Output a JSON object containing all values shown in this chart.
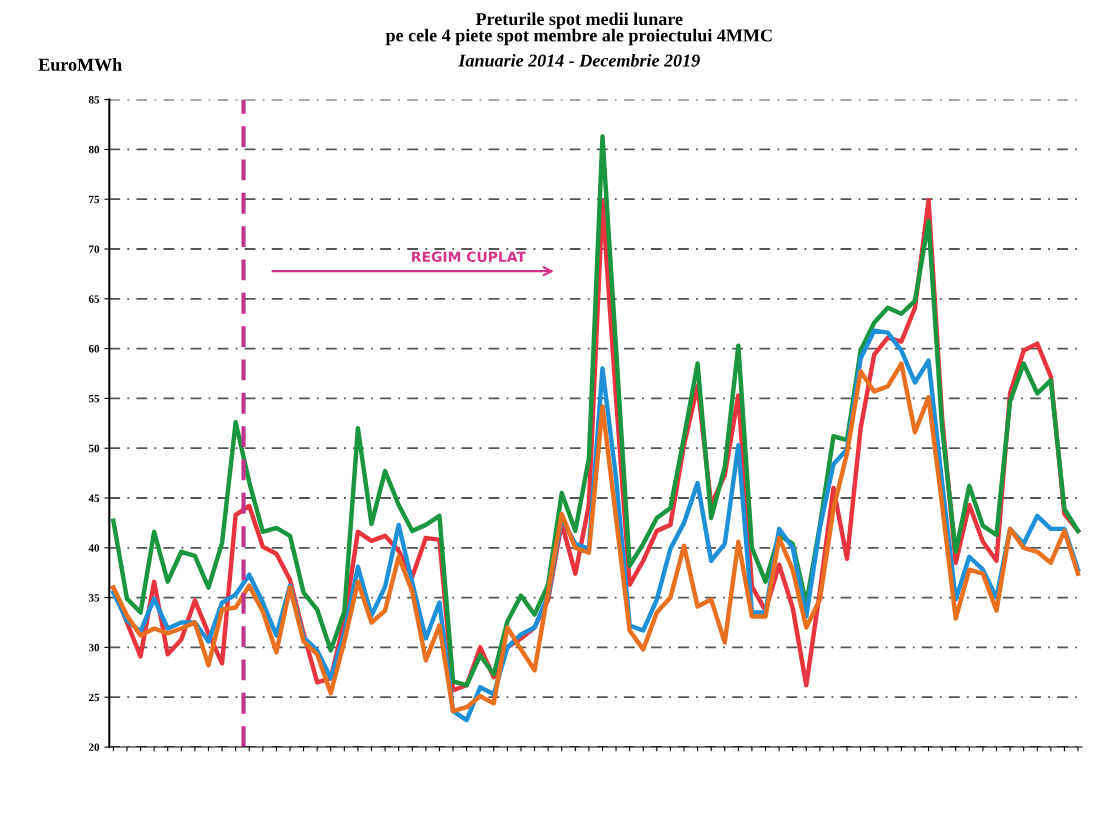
{
  "chart_data": {
    "type": "line",
    "title": "Preturile spot medii lunare\npe cele 4 piete spot membre ale proiectului 4MMC",
    "subtitle": "Ianuarie 2014 - Decembrie 2019",
    "ylabel": "EuroMWh",
    "annotations": [
      "REGIM CUPLAT"
    ],
    "categories": [
      null,
      null,
      null,
      null,
      null,
      null,
      null,
      null,
      null,
      null,
      null,
      null,
      null,
      null,
      null,
      null,
      null,
      null,
      null,
      null,
      null,
      null,
      null,
      null,
      null,
      null,
      null,
      null,
      null,
      null,
      null,
      null,
      null,
      null,
      null,
      null,
      null,
      null,
      null,
      null,
      null,
      null,
      null,
      null,
      null,
      null,
      null,
      null,
      null,
      null,
      null,
      null,
      null,
      null,
      null,
      null,
      null,
      null,
      null,
      null,
      null,
      null,
      null,
      null,
      null,
      null,
      null,
      null,
      null,
      null,
      null,
      null
    ],
    "series": [
      {
        "color": "#e8343f",
        "values": [
          36.0,
          32.5,
          29.1,
          36.6,
          29.3,
          30.8,
          34.7,
          31.4,
          28.4,
          43.3,
          44.2,
          40.1,
          39.4,
          36.8,
          31.4,
          26.5,
          26.9,
          32.7,
          41.6,
          40.7,
          41.2,
          39.7,
          37.1,
          41.0,
          40.8,
          25.7,
          26.2,
          30.0,
          27.0,
          30.0,
          30.9,
          32.0,
          34.8,
          42.5,
          37.4,
          44.3,
          74.8,
          55,
          36.3,
          38.7,
          41.7,
          42.3,
          50.3,
          56.3,
          44.3,
          47.3,
          55.3,
          36.1,
          33.7,
          38.3,
          34.0,
          26.2,
          35.6,
          46.0,
          38.9,
          52.0,
          59.4,
          61.1,
          60.7,
          64.1,
          74.9,
          53,
          38.5,
          44.3,
          40.6,
          38.7,
          55.5,
          59.8,
          60.5,
          57.2,
          43.4,
          41.7
        ]
      },
      {
        "color": "#1a9641",
        "values": [
          42.7,
          34.9,
          33.5,
          41.6,
          36.6,
          39.6,
          39.2,
          36.0,
          40.5,
          52.6,
          46.6,
          41.6,
          42.0,
          41.2,
          35.5,
          33.8,
          29.7,
          33.6,
          52.0,
          42.4,
          47.7,
          44.3,
          41.7,
          42.3,
          43.2,
          26.6,
          26.2,
          29.2,
          27.3,
          32.6,
          35.2,
          33.3,
          36.3,
          45.5,
          41.7,
          49.0,
          81.3,
          60,
          38.2,
          40.4,
          43.0,
          44.0,
          51.1,
          58.5,
          43.0,
          48.1,
          60.3,
          40.0,
          36.6,
          41.3,
          40.4,
          34.4,
          42.2,
          51.2,
          50.8,
          59.8,
          62.6,
          64.1,
          63.5,
          64.8,
          72.8,
          52,
          39.6,
          46.2,
          42.2,
          41.3,
          54.7,
          58.5,
          55.5,
          56.8,
          43.9,
          41.7
        ]
      },
      {
        "color": "#1e90d8",
        "values": [
          35.5,
          32.7,
          31.6,
          34.9,
          31.9,
          32.5,
          32.5,
          30.6,
          34.5,
          35.3,
          37.3,
          34.5,
          31.2,
          36.2,
          31.0,
          29.7,
          26.9,
          31.4,
          38.1,
          33.2,
          36.1,
          42.3,
          36.5,
          30.9,
          34.5,
          23.6,
          22.7,
          26.0,
          25.3,
          30.0,
          31.3,
          32.0,
          35.2,
          43.0,
          40.4,
          39.9,
          58.0,
          47,
          32.2,
          31.7,
          34.8,
          39.9,
          42.5,
          46.5,
          38.7,
          40.4,
          50.3,
          33.5,
          33.5,
          41.9,
          40.0,
          33.1,
          42.0,
          48.4,
          49.9,
          59.0,
          61.8,
          61.6,
          59.8,
          56.6,
          58.8,
          46.5,
          34.8,
          39.1,
          37.8,
          35.0,
          41.9,
          40.4,
          43.2,
          41.9,
          41.9,
          37.8
        ]
      },
      {
        "color": "#e8701e",
        "values": [
          36.0,
          33.2,
          31.2,
          31.9,
          31.4,
          31.9,
          32.5,
          28.2,
          33.8,
          34.0,
          36.2,
          33.6,
          29.5,
          36.0,
          30.6,
          29.3,
          25.4,
          30.6,
          36.6,
          32.5,
          33.7,
          39.1,
          35.6,
          28.7,
          32.2,
          23.6,
          24.0,
          25.1,
          24.4,
          32.0,
          29.8,
          27.7,
          35.6,
          43.4,
          40.0,
          39.5,
          54.2,
          43,
          31.7,
          29.8,
          33.5,
          35.0,
          40.2,
          34.1,
          34.8,
          30.5,
          40.6,
          33.1,
          33.1,
          41.0,
          37.8,
          32.0,
          34.8,
          43.9,
          49.5,
          57.7,
          55.7,
          56.2,
          58.5,
          51.6,
          55.1,
          44.3,
          32.9,
          37.8,
          37.4,
          33.7,
          41.9,
          40.0,
          39.6,
          38.5,
          41.7,
          37.4
        ]
      }
    ],
    "ylim": [
      20,
      85
    ],
    "yticks": [
      20,
      25,
      30,
      35,
      40,
      45,
      50,
      55,
      60,
      65,
      70,
      75,
      80,
      85
    ],
    "tick_labels": "y",
    "grid": "y",
    "line_style": "solid",
    "marker": "none"
  }
}
